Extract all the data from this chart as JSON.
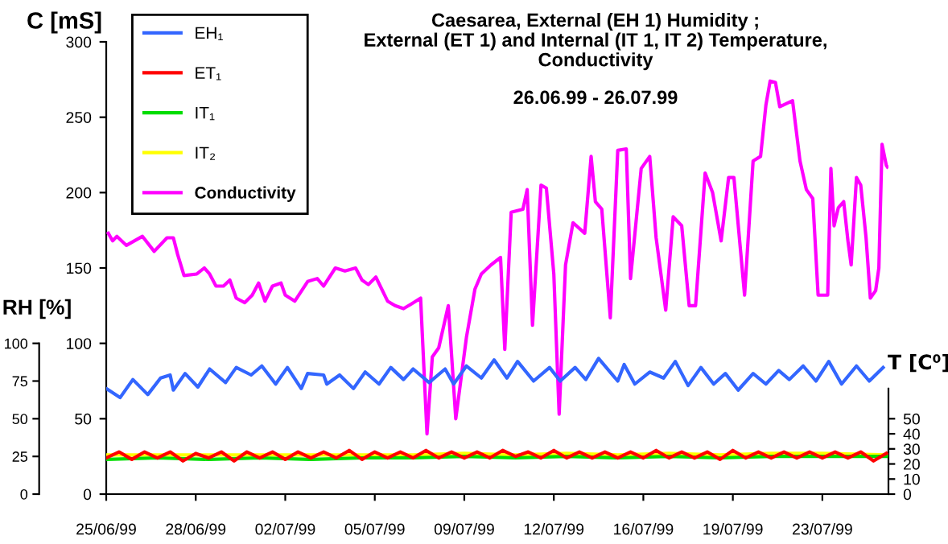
{
  "chart_data": {
    "type": "line",
    "title": "Caesarea, External (EH 1) Humidity ;\nExternal (ET 1) and Internal (IT 1, IT 2) Temperature,\nConductivity",
    "subtitle": "26.06.99 - 26.07.99",
    "ylabel": "C [mS]",
    "y2label": "RH [%]",
    "y3label": "T [C⁰]",
    "xlim": [
      "1999-06-25T00:00",
      "1999-07-25T14:00"
    ],
    "xticks": [
      {
        "value": "1999-06-25T00:00",
        "label": "25/06/99"
      },
      {
        "value": "1999-06-28T12:00",
        "label": "28/06/99"
      },
      {
        "value": "1999-07-02T00:00",
        "label": "02/07/99"
      },
      {
        "value": "1999-07-05T12:00",
        "label": "05/07/99"
      },
      {
        "value": "1999-07-09T00:00",
        "label": "09/07/99"
      },
      {
        "value": "1999-07-12T12:00",
        "label": "12/07/99"
      },
      {
        "value": "1999-07-16T00:00",
        "label": "16/07/99"
      },
      {
        "value": "1999-07-19T12:00",
        "label": "19/07/99"
      },
      {
        "value": "1999-07-23T00:00",
        "label": "23/07/99"
      }
    ],
    "ylim": [
      0,
      300
    ],
    "yticks": [
      0,
      50,
      100,
      150,
      200,
      250,
      300
    ],
    "y2lim": [
      0,
      100
    ],
    "y2ticks": [
      0,
      25,
      50,
      75,
      100
    ],
    "y3lim": [
      0,
      70
    ],
    "y3ticks": [
      0,
      10,
      20,
      30,
      40,
      50
    ],
    "legend": "top left",
    "grid": false,
    "series": [
      {
        "name": "EH₁",
        "color": "#3366ff",
        "axis": "y2",
        "x": [
          "1999-06-25T00:00",
          "1999-06-25T13:00",
          "1999-06-26T01:00",
          "1999-06-26T15:00",
          "1999-06-27T03:00",
          "1999-06-27T12:00",
          "1999-06-27T15:00",
          "1999-06-28T02:00",
          "1999-06-28T14:00",
          "1999-06-29T01:00",
          "1999-06-29T16:00",
          "1999-06-30T02:00",
          "1999-06-30T16:00",
          "1999-07-01T02:00",
          "1999-07-01T15:00",
          "1999-07-02T02:00",
          "1999-07-02T15:00",
          "1999-07-02T21:00",
          "1999-07-03T12:00",
          "1999-07-03T15:00",
          "1999-07-04T03:00",
          "1999-07-04T16:00",
          "1999-07-05T03:00",
          "1999-07-05T16:00",
          "1999-07-06T03:00",
          "1999-07-06T15:00",
          "1999-07-07T00:00",
          "1999-07-07T15:00",
          "1999-07-08T06:00",
          "1999-07-08T14:00",
          "1999-07-09T02:00",
          "1999-07-09T16:00",
          "1999-07-10T04:00",
          "1999-07-10T16:00",
          "1999-07-11T02:00",
          "1999-07-11T17:00",
          "1999-07-12T08:00",
          "1999-07-12T18:00",
          "1999-07-13T08:00",
          "1999-07-13T18:00",
          "1999-07-14T06:00",
          "1999-07-15T00:00",
          "1999-07-15T06:00",
          "1999-07-15T16:00",
          "1999-07-16T06:00",
          "1999-07-16T19:00",
          "1999-07-17T06:00",
          "1999-07-17T18:00",
          "1999-07-18T06:00",
          "1999-07-18T18:00",
          "1999-07-19T05:00",
          "1999-07-19T17:00",
          "1999-07-20T07:00",
          "1999-07-20T19:00",
          "1999-07-21T07:00",
          "1999-07-21T17:00",
          "1999-07-22T06:00",
          "1999-07-22T18:00",
          "1999-07-23T06:00",
          "1999-07-23T18:00",
          "1999-07-24T08:00",
          "1999-07-24T20:00",
          "1999-07-25T09:00"
        ],
        "values": [
          70,
          64,
          76,
          66,
          77,
          79,
          69,
          80,
          71,
          83,
          74,
          84,
          79,
          85,
          73,
          84,
          70,
          80,
          79,
          73,
          79,
          70,
          81,
          73,
          84,
          76,
          83,
          74,
          83,
          73,
          85,
          77,
          89,
          77,
          88,
          75,
          84,
          75,
          84,
          76,
          90,
          75,
          86,
          73,
          81,
          77,
          88,
          72,
          84,
          73,
          80,
          69,
          80,
          73,
          82,
          76,
          85,
          75,
          88,
          73,
          85,
          75,
          84
        ]
      },
      {
        "name": "ET₁",
        "color": "#ff0000",
        "axis": "y3",
        "x": [
          "1999-06-25T00:00",
          "1999-06-25T12:00",
          "1999-06-26T00:00",
          "1999-06-26T12:00",
          "1999-06-27T00:00",
          "1999-06-27T12:00",
          "1999-06-28T00:00",
          "1999-06-28T12:00",
          "1999-06-29T00:00",
          "1999-06-29T12:00",
          "1999-06-30T00:00",
          "1999-06-30T12:00",
          "1999-07-01T00:00",
          "1999-07-01T12:00",
          "1999-07-02T00:00",
          "1999-07-02T12:00",
          "1999-07-03T00:00",
          "1999-07-03T12:00",
          "1999-07-04T00:00",
          "1999-07-04T12:00",
          "1999-07-05T00:00",
          "1999-07-05T12:00",
          "1999-07-06T00:00",
          "1999-07-06T12:00",
          "1999-07-07T00:00",
          "1999-07-07T12:00",
          "1999-07-08T00:00",
          "1999-07-08T12:00",
          "1999-07-09T00:00",
          "1999-07-09T12:00",
          "1999-07-10T00:00",
          "1999-07-10T12:00",
          "1999-07-11T00:00",
          "1999-07-11T12:00",
          "1999-07-12T00:00",
          "1999-07-12T12:00",
          "1999-07-13T00:00",
          "1999-07-13T12:00",
          "1999-07-14T00:00",
          "1999-07-14T12:00",
          "1999-07-15T00:00",
          "1999-07-15T12:00",
          "1999-07-16T00:00",
          "1999-07-16T12:00",
          "1999-07-17T00:00",
          "1999-07-17T12:00",
          "1999-07-18T00:00",
          "1999-07-18T12:00",
          "1999-07-19T00:00",
          "1999-07-19T12:00",
          "1999-07-20T00:00",
          "1999-07-20T12:00",
          "1999-07-21T00:00",
          "1999-07-21T12:00",
          "1999-07-22T00:00",
          "1999-07-22T12:00",
          "1999-07-23T00:00",
          "1999-07-23T12:00",
          "1999-07-24T00:00",
          "1999-07-24T12:00",
          "1999-07-25T00:00",
          "1999-07-25T12:00"
        ],
        "values": [
          24,
          28,
          23,
          28,
          24,
          28,
          22,
          27,
          24,
          28,
          22,
          28,
          24,
          28,
          23,
          28,
          24,
          28,
          24,
          29,
          23,
          28,
          24,
          28,
          24,
          29,
          24,
          28,
          24,
          28,
          24,
          29,
          25,
          28,
          24,
          29,
          24,
          28,
          24,
          28,
          24,
          28,
          24,
          29,
          24,
          28,
          24,
          28,
          23,
          29,
          24,
          28,
          24,
          28,
          24,
          28,
          24,
          28,
          24,
          28,
          22,
          27
        ]
      },
      {
        "name": "IT₁",
        "color": "#00dd00",
        "axis": "y3",
        "x": [
          "1999-06-25T00:00",
          "1999-06-27T00:00",
          "1999-06-29T00:00",
          "1999-07-01T00:00",
          "1999-07-03T00:00",
          "1999-07-05T00:00",
          "1999-07-07T00:00",
          "1999-07-09T00:00",
          "1999-07-11T00:00",
          "1999-07-13T00:00",
          "1999-07-15T00:00",
          "1999-07-17T00:00",
          "1999-07-19T00:00",
          "1999-07-21T00:00",
          "1999-07-23T00:00",
          "1999-07-25T12:00"
        ],
        "values": [
          23,
          24,
          23,
          24,
          23,
          24,
          24,
          25,
          24,
          25,
          24,
          25,
          24,
          25,
          25,
          25
        ]
      },
      {
        "name": "IT₂",
        "color": "#ffff00",
        "axis": "y3",
        "x": [
          "1999-06-25T00:00",
          "1999-06-27T00:00",
          "1999-06-29T00:00",
          "1999-07-01T00:00",
          "1999-07-03T00:00",
          "1999-07-05T00:00",
          "1999-07-07T00:00",
          "1999-07-09T00:00",
          "1999-07-11T00:00",
          "1999-07-13T00:00",
          "1999-07-15T00:00",
          "1999-07-17T00:00",
          "1999-07-19T00:00",
          "1999-07-21T00:00",
          "1999-07-23T00:00",
          "1999-07-25T12:00"
        ],
        "values": [
          26,
          26,
          26,
          26,
          26,
          26,
          26,
          27,
          26,
          27,
          26,
          27,
          26,
          27,
          27,
          26
        ]
      },
      {
        "name": "Conductivity",
        "color": "#ff00ff",
        "axis": "y",
        "x": [
          "1999-06-25T02:00",
          "1999-06-25T06:00",
          "1999-06-25T10:00",
          "1999-06-25T19:00",
          "1999-06-26T10:00",
          "1999-06-26T21:00",
          "1999-06-27T09:00",
          "1999-06-27T15:00",
          "1999-06-27T19:00",
          "1999-06-28T01:00",
          "1999-06-28T13:00",
          "1999-06-28T20:00",
          "1999-06-29T01:00",
          "1999-06-29T07:00",
          "1999-06-29T14:00",
          "1999-06-29T20:00",
          "1999-06-30T02:00",
          "1999-06-30T10:00",
          "1999-06-30T17:00",
          "1999-06-30T23:00",
          "1999-07-01T05:00",
          "1999-07-01T12:00",
          "1999-07-01T20:00",
          "1999-07-02T00:00",
          "1999-07-02T09:00",
          "1999-07-02T21:00",
          "1999-07-03T06:00",
          "1999-07-03T12:00",
          "1999-07-03T23:00",
          "1999-07-04T08:00",
          "1999-07-04T18:00",
          "1999-07-05T00:00",
          "1999-07-05T06:00",
          "1999-07-05T13:00",
          "1999-07-06T00:00",
          "1999-07-06T07:00",
          "1999-07-06T15:00",
          "1999-07-06T22:00",
          "1999-07-07T07:00",
          "1999-07-07T13:00",
          "1999-07-07T18:00",
          "1999-07-08T00:00",
          "1999-07-08T09:00",
          "1999-07-08T16:00",
          "1999-07-09T02:00",
          "1999-07-09T10:00",
          "1999-07-09T16:00",
          "1999-07-10T01:00",
          "1999-07-10T10:00",
          "1999-07-10T14:00",
          "1999-07-10T20:00",
          "1999-07-11T07:00",
          "1999-07-11T11:00",
          "1999-07-11T16:00",
          "1999-07-12T00:00",
          "1999-07-12T05:00",
          "1999-07-12T12:00",
          "1999-07-12T17:00",
          "1999-07-12T23:00",
          "1999-07-13T06:00",
          "1999-07-13T17:00",
          "1999-07-13T23:00",
          "1999-07-14T03:00",
          "1999-07-14T09:00",
          "1999-07-14T17:00",
          "1999-07-15T00:00",
          "1999-07-15T08:00",
          "1999-07-15T12:00",
          "1999-07-15T22:00",
          "1999-07-16T06:00",
          "1999-07-16T12:00",
          "1999-07-16T21:00",
          "1999-07-17T04:00",
          "1999-07-17T12:00",
          "1999-07-17T19:00",
          "1999-07-18T01:00",
          "1999-07-18T10:00",
          "1999-07-18T17:00",
          "1999-07-19T01:00",
          "1999-07-19T08:00",
          "1999-07-19T13:00",
          "1999-07-19T23:00",
          "1999-07-20T07:00",
          "1999-07-20T14:00",
          "1999-07-20T19:00",
          "1999-07-20T23:00",
          "1999-07-21T04:00",
          "1999-07-21T08:00",
          "1999-07-21T20:00",
          "1999-07-22T03:00",
          "1999-07-22T09:00",
          "1999-07-22T15:00",
          "1999-07-22T20:00",
          "1999-07-23T05:00",
          "1999-07-23T08:00",
          "1999-07-23T11:00",
          "1999-07-23T15:00",
          "1999-07-23T20:00",
          "1999-07-24T00:00",
          "1999-07-24T03:00",
          "1999-07-24T08:00",
          "1999-07-24T12:00",
          "1999-07-24T17:00",
          "1999-07-24T21:00",
          "1999-07-25T02:00",
          "1999-07-25T05:00",
          "1999-07-25T08:00",
          "1999-07-25T12:00",
          "1999-07-25T13:00"
        ],
        "values": [
          173,
          168,
          171,
          165,
          171,
          161,
          170,
          170,
          159,
          145,
          146,
          150,
          146,
          138,
          138,
          142,
          130,
          127,
          132,
          140,
          128,
          138,
          140,
          132,
          128,
          141,
          143,
          138,
          150,
          148,
          150,
          142,
          139,
          144,
          128,
          125,
          123,
          126,
          130,
          40,
          91,
          97,
          125,
          50,
          104,
          136,
          146,
          152,
          157,
          96,
          187,
          189,
          202,
          112,
          205,
          203,
          146,
          53,
          152,
          180,
          173,
          224,
          194,
          189,
          117,
          228,
          229,
          143,
          216,
          224,
          170,
          122,
          184,
          178,
          125,
          125,
          213,
          200,
          168,
          210,
          210,
          132,
          221,
          224,
          258,
          274,
          273,
          257,
          261,
          221,
          202,
          196,
          132,
          132,
          216,
          178,
          190,
          194,
          168,
          152,
          210,
          205,
          170,
          130,
          135,
          150,
          232,
          218,
          217
        ]
      }
    ]
  }
}
